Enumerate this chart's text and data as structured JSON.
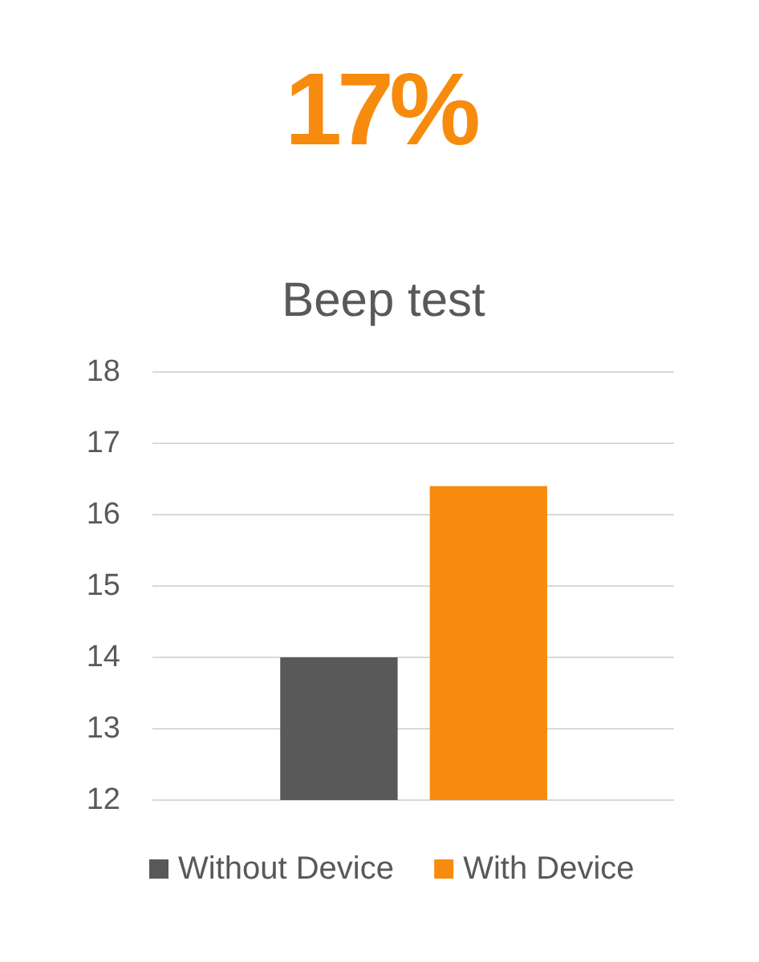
{
  "chart_data": {
    "type": "bar",
    "title": "17%",
    "subtitle": "Beep test",
    "categories": [
      null
    ],
    "series": [
      {
        "name": "Without Device",
        "color": "#595959",
        "values": [
          14
        ]
      },
      {
        "name": "With Device",
        "color": "#f78b0e",
        "values": [
          16.4
        ]
      }
    ],
    "ylim": [
      12,
      18
    ],
    "yticks": [
      12,
      13,
      14,
      15,
      16,
      17,
      18
    ],
    "grid": "y",
    "legend": "bottom"
  }
}
